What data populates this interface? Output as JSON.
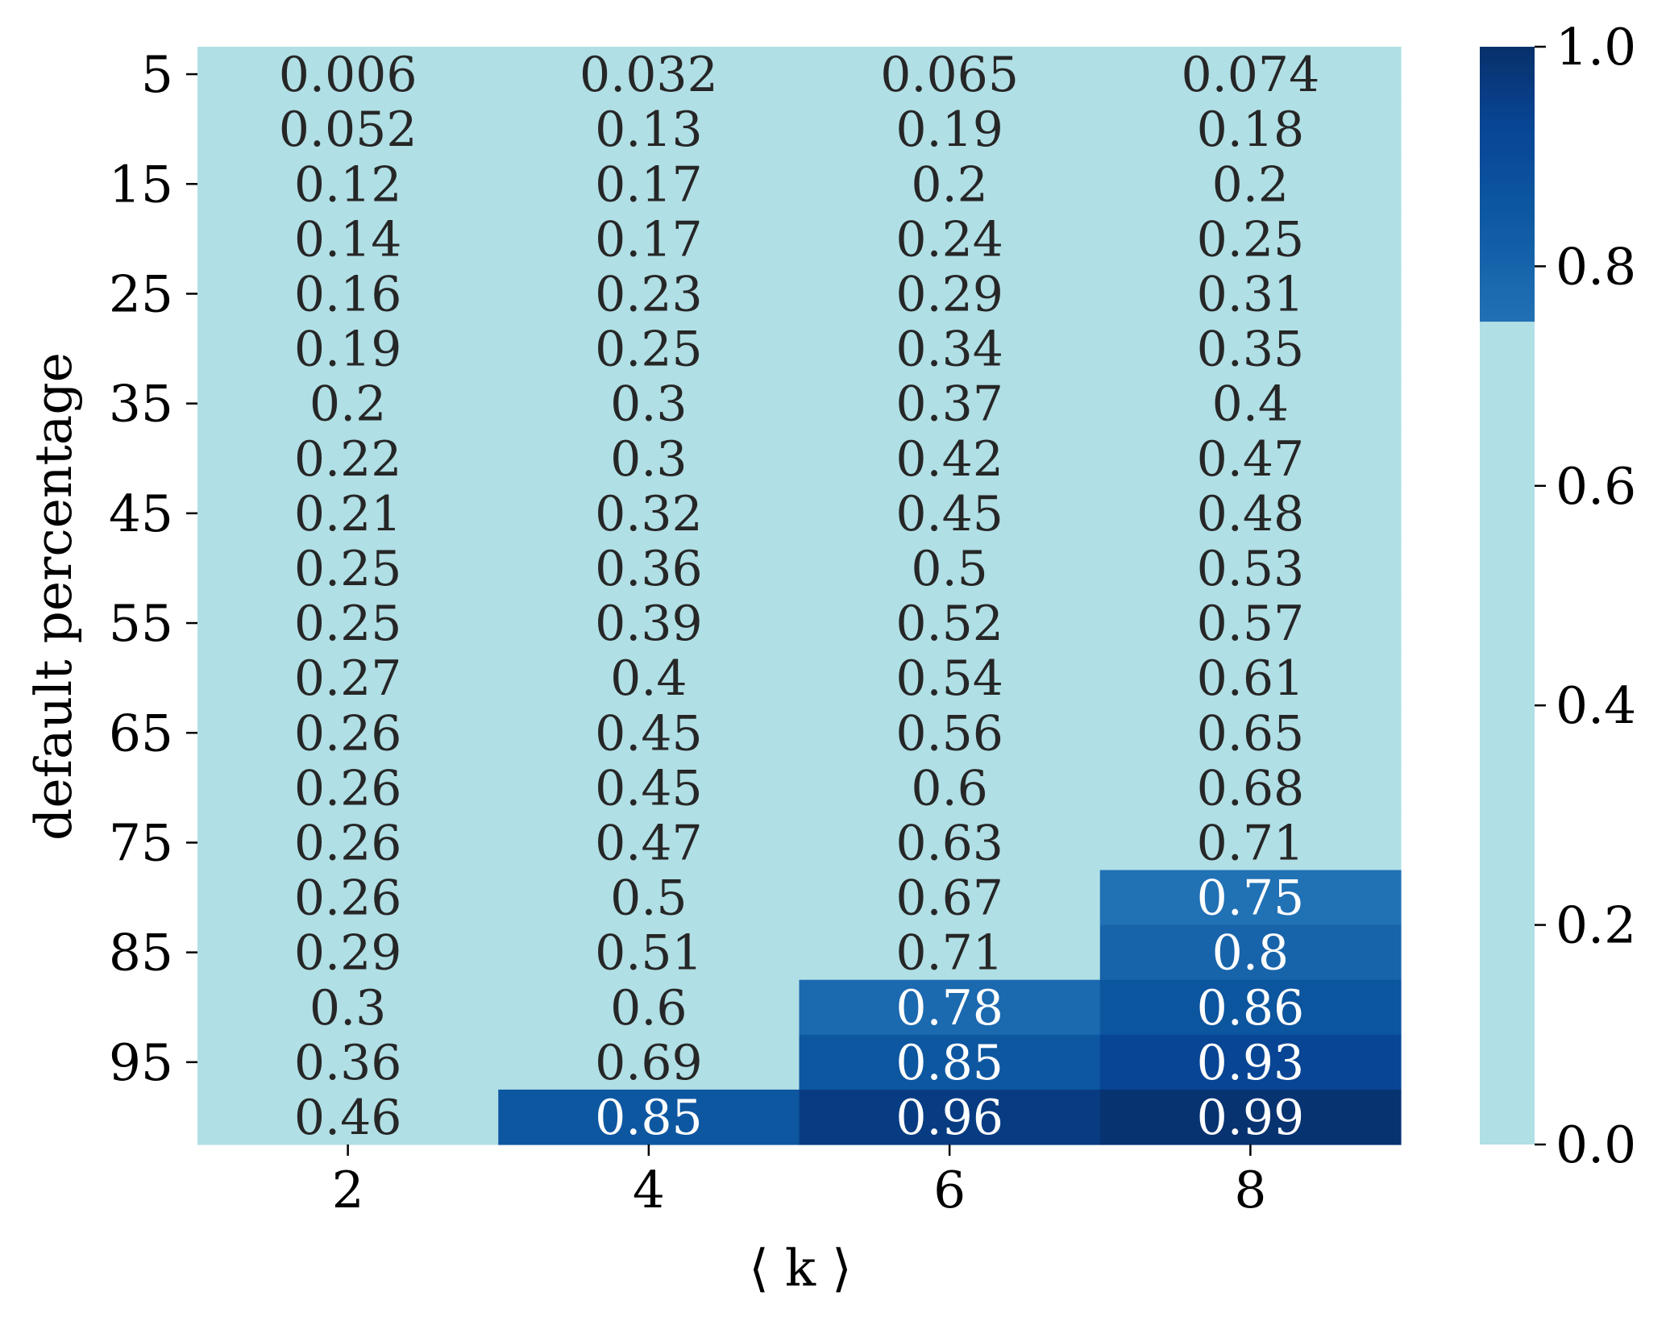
{
  "chart_data": {
    "type": "heatmap",
    "xlabel": "⟨ k ⟩",
    "ylabel": "default percentage",
    "x": [
      2,
      4,
      6,
      8
    ],
    "x_tick_labels": [
      "2",
      "4",
      "6",
      "8"
    ],
    "y": [
      5,
      10,
      15,
      20,
      25,
      30,
      35,
      40,
      45,
      50,
      55,
      60,
      65,
      70,
      75,
      80,
      85,
      90,
      95,
      100
    ],
    "y_tick_labels": [
      "5",
      "15",
      "25",
      "35",
      "45",
      "55",
      "65",
      "75",
      "85",
      "95"
    ],
    "y_tick_values": [
      5,
      15,
      25,
      35,
      45,
      55,
      65,
      75,
      85,
      95
    ],
    "cells": [
      [
        "0.006",
        "0.032",
        "0.065",
        "0.074"
      ],
      [
        "0.052",
        "0.13",
        "0.19",
        "0.18"
      ],
      [
        "0.12",
        "0.17",
        "0.2",
        "0.2"
      ],
      [
        "0.14",
        "0.17",
        "0.24",
        "0.25"
      ],
      [
        "0.16",
        "0.23",
        "0.29",
        "0.31"
      ],
      [
        "0.19",
        "0.25",
        "0.34",
        "0.35"
      ],
      [
        "0.2",
        "0.3",
        "0.37",
        "0.4"
      ],
      [
        "0.22",
        "0.3",
        "0.42",
        "0.47"
      ],
      [
        "0.21",
        "0.32",
        "0.45",
        "0.48"
      ],
      [
        "0.25",
        "0.36",
        "0.5",
        "0.53"
      ],
      [
        "0.25",
        "0.39",
        "0.52",
        "0.57"
      ],
      [
        "0.27",
        "0.4",
        "0.54",
        "0.61"
      ],
      [
        "0.26",
        "0.45",
        "0.56",
        "0.65"
      ],
      [
        "0.26",
        "0.45",
        "0.6",
        "0.68"
      ],
      [
        "0.26",
        "0.47",
        "0.63",
        "0.71"
      ],
      [
        "0.26",
        "0.5",
        "0.67",
        "0.75"
      ],
      [
        "0.29",
        "0.51",
        "0.71",
        "0.8"
      ],
      [
        "0.3",
        "0.6",
        "0.78",
        "0.86"
      ],
      [
        "0.36",
        "0.69",
        "0.85",
        "0.93"
      ],
      [
        "0.46",
        "0.85",
        "0.96",
        "0.99"
      ]
    ],
    "colorbar": {
      "range": [
        0.0,
        1.0
      ],
      "ticks": [
        "0.0",
        "0.2",
        "0.4",
        "0.6",
        "0.8",
        "1.0"
      ],
      "threshold": 0.75,
      "below_threshold_color": "#b0dfe5",
      "colormap": "Blues (upper part)"
    },
    "colors": {
      "low": "#b0dfe5",
      "dark_text": "#262626",
      "light_text": "#ffffff"
    }
  }
}
